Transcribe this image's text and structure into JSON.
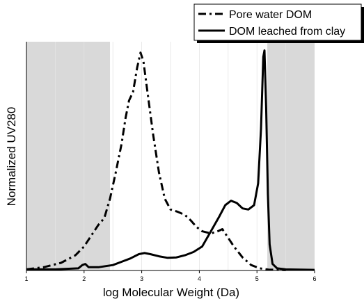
{
  "chart_data": {
    "type": "line",
    "title": "",
    "xlabel": "log Molecular Weight (Da)",
    "ylabel": "Normalized UV280",
    "xlim": [
      1,
      6
    ],
    "ylim": [
      0,
      1.05
    ],
    "x_ticks": [
      "1",
      "2",
      "3",
      "4",
      "5",
      "6"
    ],
    "grid": "vertical minor lines",
    "legend": {
      "placement": "top-right"
    },
    "shaded_regions": [
      {
        "x_range": [
          1,
          2.45
        ],
        "color": "#d9d9d9"
      },
      {
        "x_range": [
          5.18,
          6
        ],
        "color": "#d9d9d9"
      }
    ],
    "series": [
      {
        "name": "Pore water DOM",
        "style": "dash-dot",
        "color": "#000000",
        "points": [
          [
            1.0,
            0.005
          ],
          [
            1.3,
            0.015
          ],
          [
            1.6,
            0.035
          ],
          [
            1.85,
            0.07
          ],
          [
            2.0,
            0.11
          ],
          [
            2.15,
            0.17
          ],
          [
            2.25,
            0.21
          ],
          [
            2.35,
            0.24
          ],
          [
            2.45,
            0.33
          ],
          [
            2.55,
            0.45
          ],
          [
            2.65,
            0.58
          ],
          [
            2.72,
            0.7
          ],
          [
            2.78,
            0.78
          ],
          [
            2.85,
            0.82
          ],
          [
            2.92,
            0.93
          ],
          [
            2.98,
            1.0
          ],
          [
            3.03,
            0.96
          ],
          [
            3.12,
            0.78
          ],
          [
            3.2,
            0.62
          ],
          [
            3.3,
            0.45
          ],
          [
            3.4,
            0.33
          ],
          [
            3.5,
            0.28
          ],
          [
            3.62,
            0.27
          ],
          [
            3.75,
            0.255
          ],
          [
            3.85,
            0.23
          ],
          [
            3.95,
            0.2
          ],
          [
            4.05,
            0.18
          ],
          [
            4.2,
            0.17
          ],
          [
            4.32,
            0.18
          ],
          [
            4.4,
            0.19
          ],
          [
            4.5,
            0.15
          ],
          [
            4.6,
            0.11
          ],
          [
            4.75,
            0.06
          ],
          [
            4.9,
            0.025
          ],
          [
            5.05,
            0.01
          ],
          [
            5.2,
            0.004
          ],
          [
            5.5,
            0.002
          ]
        ]
      },
      {
        "name": "DOM leached from clay",
        "style": "solid",
        "color": "#000000",
        "points": [
          [
            1.0,
            0.005
          ],
          [
            1.5,
            0.005
          ],
          [
            1.9,
            0.01
          ],
          [
            1.97,
            0.025
          ],
          [
            2.02,
            0.03
          ],
          [
            2.08,
            0.015
          ],
          [
            2.25,
            0.015
          ],
          [
            2.5,
            0.025
          ],
          [
            2.65,
            0.04
          ],
          [
            2.8,
            0.055
          ],
          [
            2.95,
            0.075
          ],
          [
            3.05,
            0.08
          ],
          [
            3.15,
            0.075
          ],
          [
            3.3,
            0.065
          ],
          [
            3.45,
            0.058
          ],
          [
            3.6,
            0.06
          ],
          [
            3.75,
            0.07
          ],
          [
            3.9,
            0.085
          ],
          [
            4.05,
            0.11
          ],
          [
            4.2,
            0.18
          ],
          [
            4.35,
            0.25
          ],
          [
            4.45,
            0.3
          ],
          [
            4.55,
            0.32
          ],
          [
            4.65,
            0.31
          ],
          [
            4.75,
            0.285
          ],
          [
            4.85,
            0.28
          ],
          [
            4.95,
            0.3
          ],
          [
            5.02,
            0.4
          ],
          [
            5.07,
            0.65
          ],
          [
            5.11,
            0.98
          ],
          [
            5.13,
            1.01
          ],
          [
            5.16,
            0.75
          ],
          [
            5.19,
            0.35
          ],
          [
            5.22,
            0.12
          ],
          [
            5.27,
            0.03
          ],
          [
            5.35,
            0.01
          ],
          [
            5.5,
            0.005
          ],
          [
            6.0,
            0.003
          ]
        ]
      }
    ]
  }
}
